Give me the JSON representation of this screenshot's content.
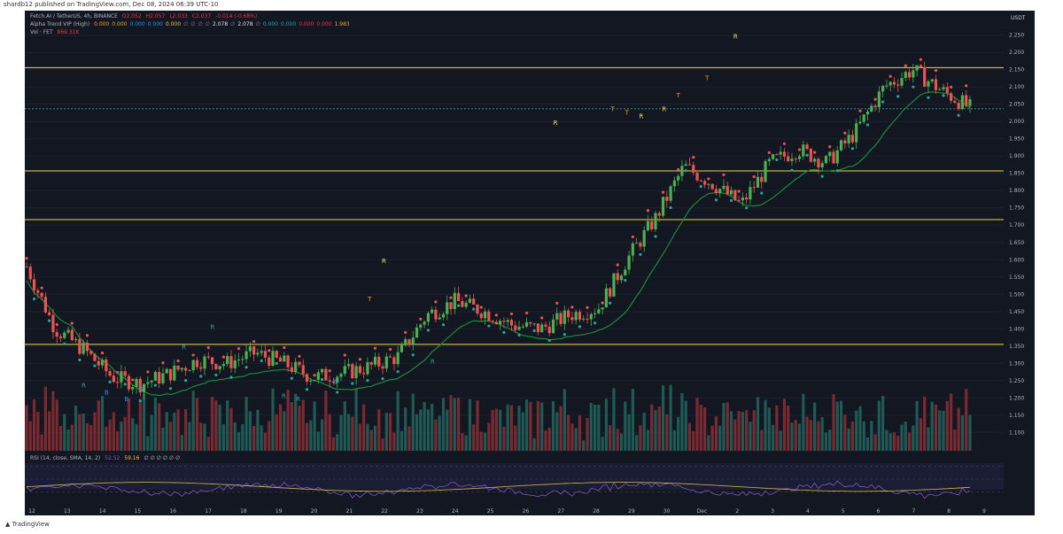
{
  "header": {
    "published": "shardb12 published on TradingView.com, Dec 08, 2024 06:39 UTC-10"
  },
  "legend": {
    "symbol_line": "Fetch.AI / TetherUS, 4h, BINANCE",
    "ohlc": [
      "O2.052",
      "H2.057",
      "L2.033",
      "C2.037",
      "-0.014 (-0.68%)"
    ],
    "indicator_name": "Alpha Trend VIP (High)",
    "indicator_values": [
      "0.000",
      "0.000",
      "0.000",
      "0.000",
      "0.000",
      "∅",
      "∅",
      "∅",
      "∅",
      "2.078",
      "∅",
      "2.078",
      "∅",
      "0.000",
      "0.000",
      "0.000",
      "0.000",
      "1.983"
    ],
    "vol_label": "Vol · FET",
    "vol_value": "869.31K",
    "rsi_label": "RSI (14, close, SMA, 14, 2)",
    "rsi_value1": "52.52",
    "rsi_value2": "59.16",
    "rsi_tail": "∅ ∅ ∅ ∅ ∅ ∅"
  },
  "chart_data": {
    "type": "candlestick",
    "symbol": "Fetch.AI / TetherUS",
    "exchange": "BINANCE",
    "timeframe": "4h",
    "price_axis_label": "USDT",
    "ylim": [
      1.07,
      2.28
    ],
    "y_ticks": [
      "2.250",
      "2.200",
      "2.150",
      "2.100",
      "2.050",
      "2.000",
      "1.950",
      "1.900",
      "1.850",
      "1.800",
      "1.750",
      "1.700",
      "1.650",
      "1.600",
      "1.550",
      "1.500",
      "1.450",
      "1.400",
      "1.350",
      "1.300",
      "1.250",
      "1.200",
      "1.150",
      "1.100"
    ],
    "x_ticks": [
      "12",
      "13",
      "14",
      "15",
      "16",
      "17",
      "18",
      "19",
      "20",
      "21",
      "22",
      "23",
      "24",
      "25",
      "26",
      "27",
      "28",
      "29",
      "30",
      "Dec",
      "2",
      "3",
      "4",
      "5",
      "6",
      "7",
      "8",
      "9"
    ],
    "horizontal_levels": [
      {
        "price": 2.156,
        "label": "2.156"
      },
      {
        "price": 1.857,
        "label": "1.857"
      },
      {
        "price": 1.716,
        "label": "1.716"
      },
      {
        "price": 1.355,
        "label": "1.355"
      }
    ],
    "current_price": {
      "price": 2.037,
      "label": "2.037",
      "countdown": "03:20:25"
    },
    "close_path": [
      {
        "x": 0,
        "y": 1.58
      },
      {
        "x": 1,
        "y": 1.4
      },
      {
        "x": 2,
        "y": 1.34
      },
      {
        "x": 3,
        "y": 1.26
      },
      {
        "x": 4,
        "y": 1.24
      },
      {
        "x": 5,
        "y": 1.27
      },
      {
        "x": 6,
        "y": 1.31
      },
      {
        "x": 7,
        "y": 1.3
      },
      {
        "x": 8,
        "y": 1.33
      },
      {
        "x": 9,
        "y": 1.3
      },
      {
        "x": 10,
        "y": 1.26
      },
      {
        "x": 11,
        "y": 1.27
      },
      {
        "x": 12,
        "y": 1.29
      },
      {
        "x": 13,
        "y": 1.32
      },
      {
        "x": 14,
        "y": 1.44
      },
      {
        "x": 15,
        "y": 1.48
      },
      {
        "x": 16,
        "y": 1.45
      },
      {
        "x": 17,
        "y": 1.41
      },
      {
        "x": 18,
        "y": 1.4
      },
      {
        "x": 19,
        "y": 1.44
      },
      {
        "x": 20,
        "y": 1.46
      },
      {
        "x": 21,
        "y": 1.6
      },
      {
        "x": 22,
        "y": 1.72
      },
      {
        "x": 23,
        "y": 1.87
      },
      {
        "x": 24,
        "y": 1.82
      },
      {
        "x": 25,
        "y": 1.76
      },
      {
        "x": 26,
        "y": 1.88
      },
      {
        "x": 27,
        "y": 1.92
      },
      {
        "x": 28,
        "y": 1.88
      },
      {
        "x": 29,
        "y": 1.97
      },
      {
        "x": 30,
        "y": 2.1
      },
      {
        "x": 31,
        "y": 2.15
      },
      {
        "x": 32,
        "y": 2.09
      },
      {
        "x": 33,
        "y": 2.04
      }
    ],
    "signals": [
      {
        "label": "R",
        "x": 2.0,
        "price": 1.23
      },
      {
        "label": "B",
        "x": 2.8,
        "price": 1.21
      },
      {
        "label": "B",
        "x": 3.5,
        "price": 1.19
      },
      {
        "label": "B",
        "x": 4.0,
        "price": 1.22
      },
      {
        "label": "R",
        "x": 5.5,
        "price": 1.34
      },
      {
        "label": "R",
        "x": 6.5,
        "price": 1.4
      },
      {
        "label": "R",
        "x": 9.0,
        "price": 1.2
      },
      {
        "label": "R",
        "x": 9.5,
        "price": 1.19
      },
      {
        "label": "B",
        "x": 10.8,
        "price": 1.24
      },
      {
        "label": "T",
        "x": 12.0,
        "price": 1.48
      },
      {
        "label": "R",
        "x": 12.5,
        "price": 1.59
      },
      {
        "label": "R",
        "x": 14.2,
        "price": 1.3
      },
      {
        "label": "R",
        "x": 18.5,
        "price": 1.99
      },
      {
        "label": "T",
        "x": 20.5,
        "price": 2.03
      },
      {
        "label": "T",
        "x": 21.0,
        "price": 2.02
      },
      {
        "label": "R",
        "x": 21.5,
        "price": 2.01
      },
      {
        "label": "R",
        "x": 22.3,
        "price": 2.03
      },
      {
        "label": "T",
        "x": 22.8,
        "price": 2.07
      },
      {
        "label": "T",
        "x": 23.8,
        "price": 2.12
      },
      {
        "label": "R",
        "x": 24.8,
        "price": 2.24
      }
    ],
    "volume_label": "Vol · FET",
    "volume_last": "869.31K",
    "rsi": {
      "label": "RSI (14, close, SMA, 14, 2)",
      "values": [
        52.52,
        59.16
      ],
      "y_ticks": [
        "80.00",
        "60.00",
        "40.00"
      ]
    }
  }
}
